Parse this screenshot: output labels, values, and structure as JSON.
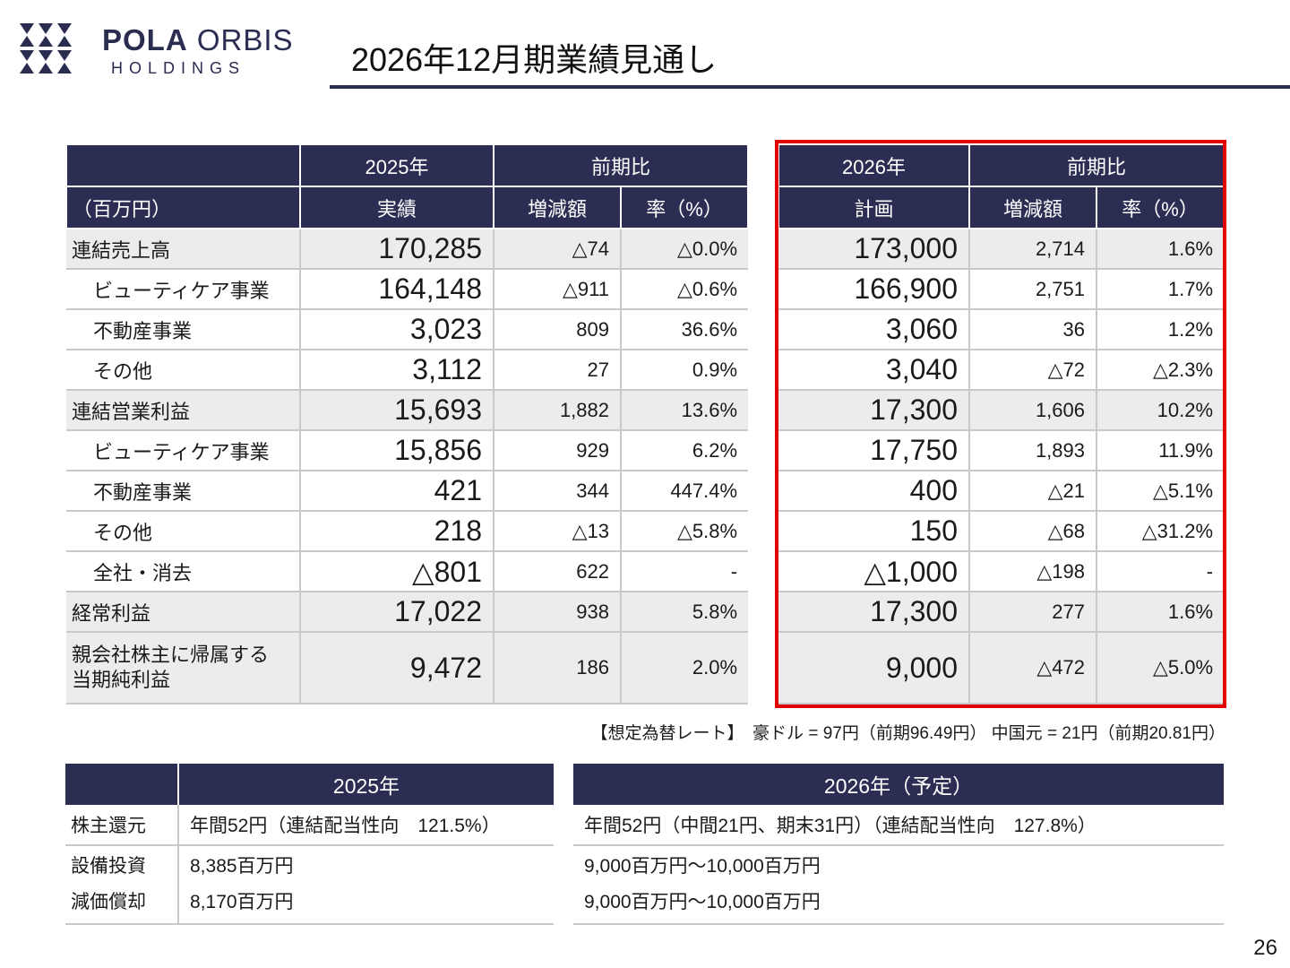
{
  "logo": {
    "brand_bold": "POLA",
    "brand_light": "ORBIS",
    "sub": "HOLDINGS"
  },
  "title": "2026年12月期業績見通し",
  "left_table": {
    "header_year": "2025年",
    "header_compare": "前期比",
    "header_unit": "（百万円）",
    "header_actual": "実績",
    "header_diff": "増減額",
    "header_rate": "率（%）",
    "rows": [
      {
        "label": "連結売上高",
        "value": "170,285",
        "diff": "△74",
        "rate": "△0.0%"
      },
      {
        "label": "ビューティケア事業",
        "value": "164,148",
        "diff": "△911",
        "rate": "△0.6%"
      },
      {
        "label": "不動産事業",
        "value": "3,023",
        "diff": "809",
        "rate": "36.6%"
      },
      {
        "label": "その他",
        "value": "3,112",
        "diff": "27",
        "rate": "0.9%"
      },
      {
        "label": "連結営業利益",
        "value": "15,693",
        "diff": "1,882",
        "rate": "13.6%"
      },
      {
        "label": "ビューティケア事業",
        "value": "15,856",
        "diff": "929",
        "rate": "6.2%"
      },
      {
        "label": "不動産事業",
        "value": "421",
        "diff": "344",
        "rate": "447.4%"
      },
      {
        "label": "その他",
        "value": "218",
        "diff": "△13",
        "rate": "△5.8%"
      },
      {
        "label": "全社・消去",
        "value": "△801",
        "diff": "622",
        "rate": "-"
      },
      {
        "label": "経常利益",
        "value": "17,022",
        "diff": "938",
        "rate": "5.8%"
      },
      {
        "label_line1": "親会社株主に帰属する",
        "label_line2": "当期純利益",
        "value": "9,472",
        "diff": "186",
        "rate": "2.0%"
      }
    ]
  },
  "right_table": {
    "header_year": "2026年",
    "header_compare": "前期比",
    "header_plan": "計画",
    "header_diff": "増減額",
    "header_rate": "率（%）",
    "rows": [
      {
        "value": "173,000",
        "diff": "2,714",
        "rate": "1.6%"
      },
      {
        "value": "166,900",
        "diff": "2,751",
        "rate": "1.7%"
      },
      {
        "value": "3,060",
        "diff": "36",
        "rate": "1.2%"
      },
      {
        "value": "3,040",
        "diff": "△72",
        "rate": "△2.3%"
      },
      {
        "value": "17,300",
        "diff": "1,606",
        "rate": "10.2%"
      },
      {
        "value": "17,750",
        "diff": "1,893",
        "rate": "11.9%"
      },
      {
        "value": "400",
        "diff": "△21",
        "rate": "△5.1%"
      },
      {
        "value": "150",
        "diff": "△68",
        "rate": "△31.2%"
      },
      {
        "value": "△1,000",
        "diff": "△198",
        "rate": "-"
      },
      {
        "value": "17,300",
        "diff": "277",
        "rate": "1.6%"
      },
      {
        "value": "9,000",
        "diff": "△472",
        "rate": "△5.0%"
      }
    ]
  },
  "fx_note": "【想定為替レート】　豪ドル = 97円（前期96.49円）  中国元 = 21円（前期20.81円）",
  "bottom_left": {
    "header": "2025年",
    "dividend_label": "株主還元",
    "dividend_value": "年間52円（連結配当性向　121.5%）",
    "capex_label": "設備投資",
    "capex_value": "8,385百万円",
    "depreciation_label": "減価償却",
    "depreciation_value": "8,170百万円"
  },
  "bottom_right": {
    "header": "2026年（予定）",
    "dividend_value": "年間52円（中間21円、期末31円）（連結配当性向　127.8%）",
    "capex_value": "9,000百万円～10,000百万円",
    "depreciation_value": "9,000百万円～10,000百万円"
  },
  "page_number": "26",
  "colors": {
    "navy": "#2c2d52",
    "highlight_red": "#e00000",
    "row_grey": "#ececec"
  }
}
